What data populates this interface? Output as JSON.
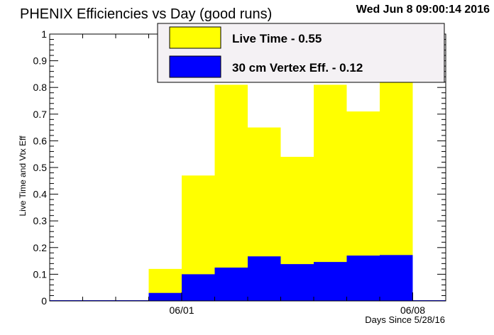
{
  "chart_data": {
    "type": "bar",
    "title": "PHENIX Efficiencies vs Day (good runs)",
    "timestamp": "Wed Jun  8 09:00:14 2016",
    "xlabel": "Days Since 5/28/16",
    "ylabel": "Live Time and Vtx Eff",
    "xlim": [
      0,
      12
    ],
    "ylim": [
      0,
      1
    ],
    "x_tick_labels": [
      {
        "x": 4,
        "label": "06/01"
      },
      {
        "x": 11,
        "label": "06/08"
      }
    ],
    "y_tick_labels": [
      "0",
      "0.1",
      "0.2",
      "0.3",
      "0.4",
      "0.5",
      "0.6",
      "0.7",
      "0.8",
      "0.9",
      "1"
    ],
    "bin_edges": [
      0,
      1,
      2,
      3,
      4,
      5,
      6,
      7,
      8,
      9,
      10,
      11,
      12
    ],
    "series": [
      {
        "name": "Live Time - 0.55",
        "color": "#ffff00",
        "values": [
          0,
          0,
          0,
          0.12,
          0.47,
          0.81,
          0.65,
          0.54,
          0.81,
          0.71,
          1.0,
          0
        ]
      },
      {
        "name": "30 cm Vertex Eff. - 0.12",
        "color": "#0000ff",
        "values": [
          0,
          0,
          0,
          0.03,
          0.1,
          0.125,
          0.167,
          0.138,
          0.146,
          0.17,
          0.172,
          0
        ]
      }
    ],
    "legend_position": "top-right"
  }
}
